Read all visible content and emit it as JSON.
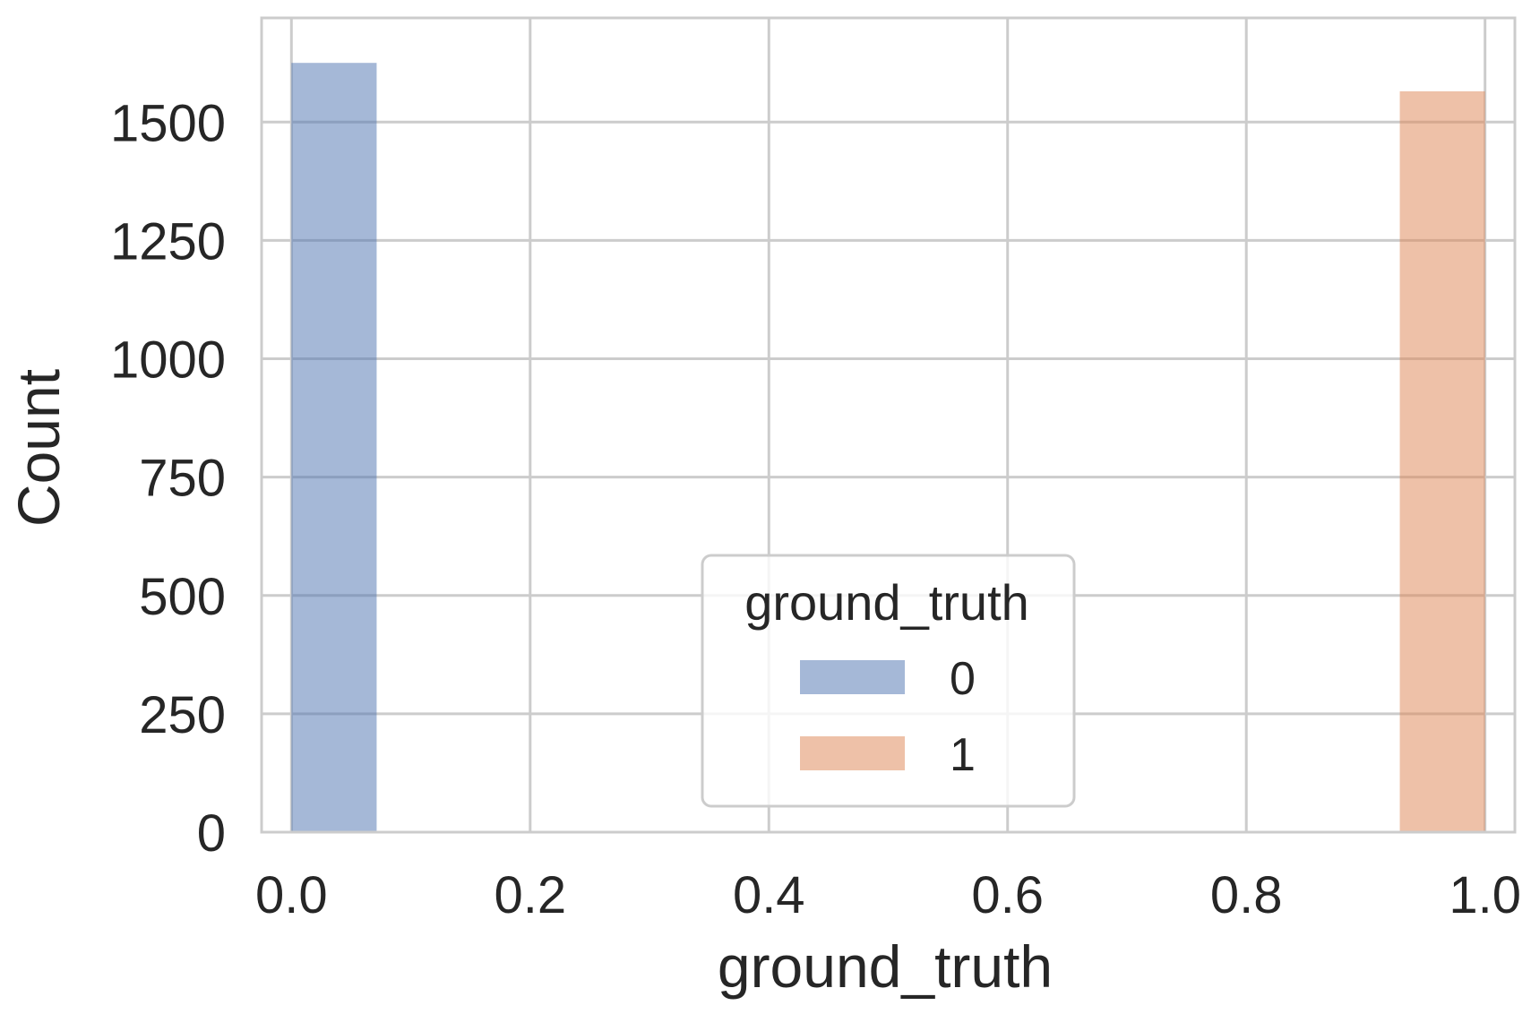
{
  "chart_data": {
    "type": "bar",
    "xlabel": "ground_truth",
    "ylabel": "Count",
    "xlim": [
      -0.025,
      1.025
    ],
    "ylim": [
      0,
      1720
    ],
    "xticks": [
      "0.0",
      "0.2",
      "0.4",
      "0.6",
      "0.8",
      "1.0"
    ],
    "xtick_values": [
      0.0,
      0.2,
      0.4,
      0.6,
      0.8,
      1.0
    ],
    "yticks": [
      "0",
      "250",
      "500",
      "750",
      "1000",
      "1250",
      "1500"
    ],
    "ytick_values": [
      0,
      250,
      500,
      750,
      1000,
      1250,
      1500
    ],
    "grid": true,
    "bin_width": 0.0714,
    "series": [
      {
        "name": "0",
        "color": "#4c72b0",
        "bins": [
          {
            "x0": 0.0,
            "x1": 0.0714,
            "count": 1625
          }
        ]
      },
      {
        "name": "1",
        "color": "#dd8452",
        "bins": [
          {
            "x0": 0.9286,
            "x1": 1.0,
            "count": 1565
          }
        ]
      }
    ],
    "legend": {
      "title": "ground_truth",
      "position": "lower-center"
    }
  }
}
